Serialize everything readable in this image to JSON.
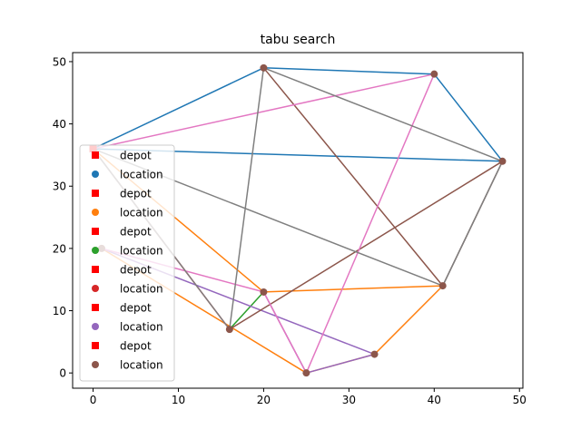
{
  "chart_data": {
    "type": "scatter",
    "title": "tabu search",
    "xlabel": "",
    "ylabel": "",
    "xlim": [
      -2.4,
      50.4
    ],
    "ylim": [
      -2.45,
      51.45
    ],
    "xticks": [
      0,
      10,
      20,
      30,
      40,
      50
    ],
    "yticks": [
      0,
      10,
      20,
      30,
      40,
      50
    ],
    "grid": false,
    "legend_position": "lower-left",
    "depot": [
      0,
      36
    ],
    "locations": [
      [
        0,
        36
      ],
      [
        20,
        49
      ],
      [
        40,
        48
      ],
      [
        48,
        34
      ],
      [
        41,
        14
      ],
      [
        33,
        3
      ],
      [
        25,
        0
      ],
      [
        16,
        7
      ],
      [
        20,
        13
      ],
      [
        1,
        20
      ]
    ],
    "routes": [
      {
        "color": "#1f77b4",
        "path": [
          [
            0,
            36
          ],
          [
            20,
            49
          ],
          [
            40,
            48
          ],
          [
            48,
            34
          ],
          [
            0,
            36
          ]
        ]
      },
      {
        "color": "#ff7f0e",
        "path": [
          [
            0,
            36
          ],
          [
            20,
            13
          ],
          [
            41,
            14
          ],
          [
            33,
            3
          ],
          [
            25,
            0
          ],
          [
            1,
            20
          ]
        ]
      },
      {
        "color": "#2ca02c",
        "path": [
          [
            16,
            7
          ],
          [
            20,
            13
          ]
        ]
      },
      {
        "color": "#d62728",
        "path": [
          [
            0,
            36
          ],
          [
            16,
            7
          ]
        ]
      },
      {
        "color": "#9467bd",
        "path": [
          [
            1,
            20
          ],
          [
            33,
            3
          ],
          [
            25,
            0
          ],
          [
            20,
            13
          ]
        ]
      },
      {
        "color": "#8c564b",
        "path": [
          [
            20,
            49
          ],
          [
            41,
            14
          ],
          [
            48,
            34
          ],
          [
            16,
            7
          ]
        ]
      },
      {
        "color": "#e377c2",
        "path": [
          [
            0,
            36
          ],
          [
            40,
            48
          ],
          [
            25,
            0
          ],
          [
            20,
            13
          ],
          [
            1,
            20
          ]
        ]
      },
      {
        "color": "#7f7f7f",
        "path": [
          [
            0,
            36
          ],
          [
            41,
            14
          ],
          [
            48,
            34
          ],
          [
            20,
            49
          ],
          [
            16,
            7
          ],
          [
            0,
            36
          ]
        ]
      }
    ],
    "series": [
      {
        "name": "depot",
        "marker": "square",
        "color": "#ff0000"
      },
      {
        "name": "location",
        "marker": "circle",
        "color": "#1f77b4"
      },
      {
        "name": "depot",
        "marker": "square",
        "color": "#ff0000"
      },
      {
        "name": "location",
        "marker": "circle",
        "color": "#ff7f0e"
      },
      {
        "name": "depot",
        "marker": "square",
        "color": "#ff0000"
      },
      {
        "name": "location",
        "marker": "circle",
        "color": "#2ca02c"
      },
      {
        "name": "depot",
        "marker": "square",
        "color": "#ff0000"
      },
      {
        "name": "location",
        "marker": "circle",
        "color": "#d62728"
      },
      {
        "name": "depot",
        "marker": "square",
        "color": "#ff0000"
      },
      {
        "name": "location",
        "marker": "circle",
        "color": "#9467bd"
      },
      {
        "name": "depot",
        "marker": "square",
        "color": "#ff0000"
      },
      {
        "name": "location",
        "marker": "circle",
        "color": "#8c564b"
      }
    ],
    "location_marker_color": "#8c564b"
  }
}
